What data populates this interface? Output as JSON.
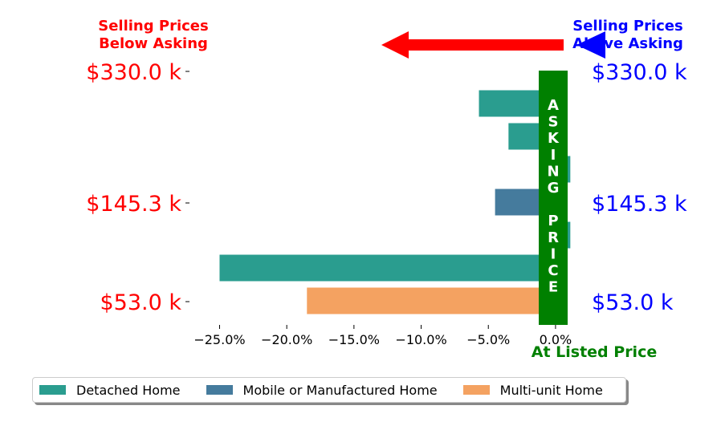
{
  "chart_data": {
    "type": "bar",
    "orientation": "horizontal",
    "y_tick_labels_left": [
      "$330.0 k",
      "$145.3 k",
      "$53.0 k"
    ],
    "y_tick_labels_right": [
      "$330.0 k",
      "$145.3 k",
      "$53.0 k"
    ],
    "bars": [
      {
        "series": "Detached Home",
        "value": -5.7
      },
      {
        "series": "Detached Home",
        "value": -3.5
      },
      {
        "series": "Detached Home",
        "value": 1.1
      },
      {
        "series": "Mobile or Manufactured Home",
        "value": -4.5
      },
      {
        "series": "Detached Home",
        "value": 1.1
      },
      {
        "series": "Detached Home",
        "value": -25.0
      },
      {
        "series": "Multi-unit Home",
        "value": -18.5
      }
    ],
    "x_ticks": [
      -25,
      -20,
      -15,
      -10,
      -5,
      0
    ],
    "x_tick_labels": [
      "−25.0%",
      "−20.0%",
      "−15.0%",
      "−10.0%",
      "−5.0%",
      "0.0%"
    ],
    "xlim": [
      -27,
      1.2
    ],
    "legend": {
      "placement": "bottom",
      "entries": [
        {
          "name": "Detached Home",
          "color": "#2a9d8f"
        },
        {
          "name": "Mobile or Manufactured Home",
          "color": "#457b9d"
        },
        {
          "name": "Multi-unit Home",
          "color": "#f4a261"
        }
      ]
    },
    "annotations": {
      "left_title_lines": [
        "Selling Prices",
        "Below Asking"
      ],
      "right_title_lines": [
        "Selling Prices",
        "Above Asking"
      ],
      "asking_price_text": "ASKING PRICE",
      "listed_price_label": "At Listed Price"
    },
    "colors": {
      "asking_band": "#008000",
      "below_text": "#ff0000",
      "above_text": "#0000ff",
      "left_arrow": "#ff0000",
      "right_arrow": "#0000ff"
    }
  }
}
